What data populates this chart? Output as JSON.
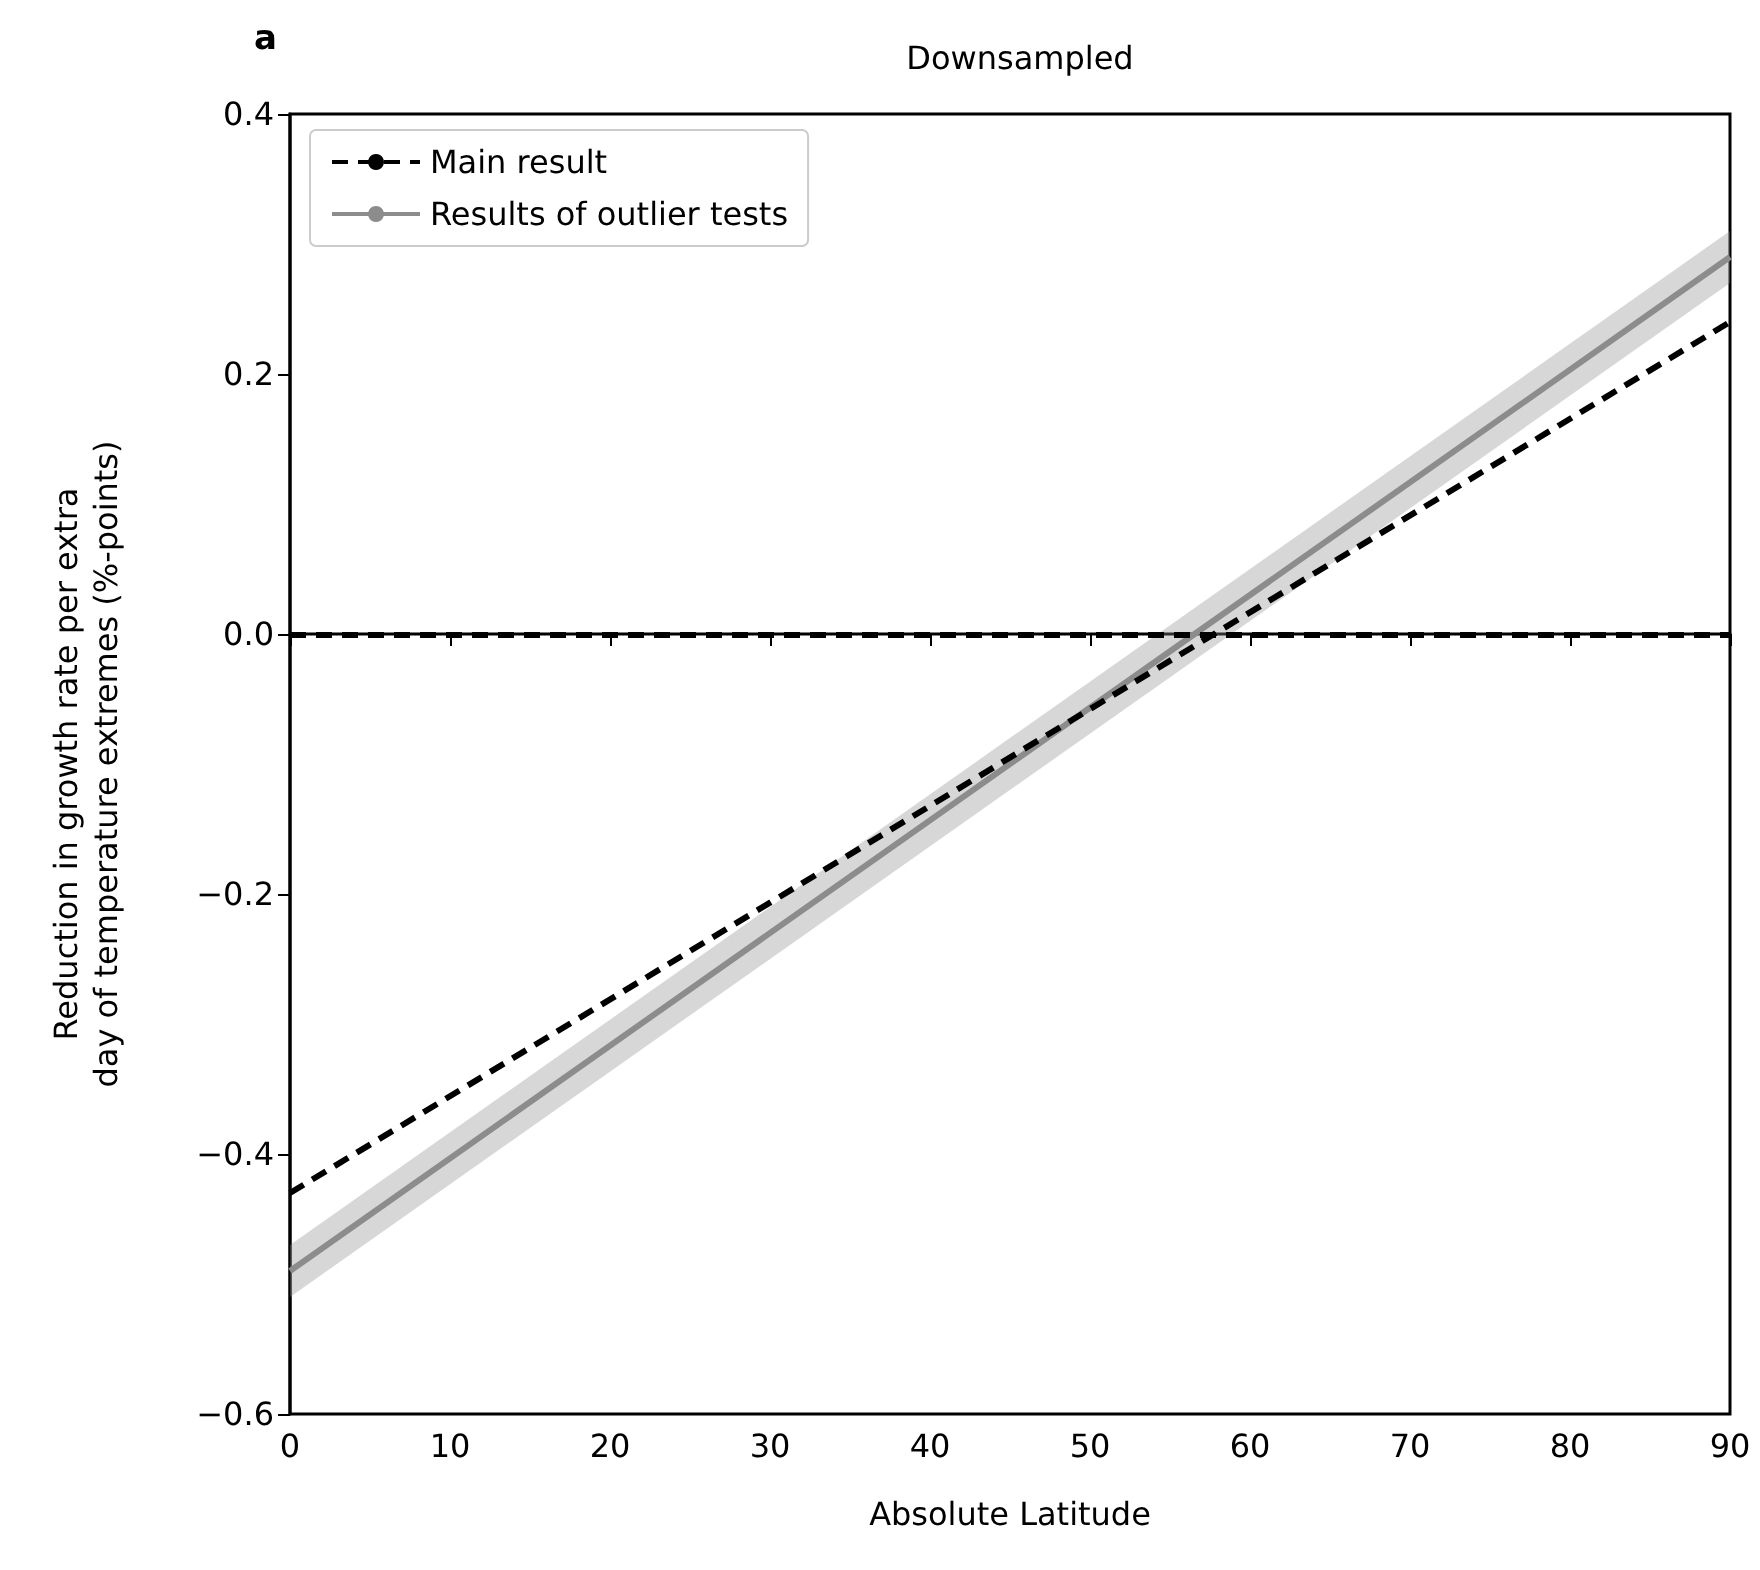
{
  "chart_data": {
    "type": "line",
    "title": "Downsampled",
    "xlabel": "Absolute Latitude",
    "ylabel": "Reduction in growth rate per extra\nday of temperature extremes (%-points)",
    "annotations": [
      "a"
    ],
    "x": [
      0,
      90
    ],
    "series": [
      {
        "name": "Main result",
        "color": "#000000",
        "values": [
          -0.43,
          0.24
        ],
        "line_style": "dashed"
      },
      {
        "name": "Results of outlier tests",
        "color": "#8c8c8c",
        "values": [
          -0.49,
          0.29
        ],
        "lower": [
          -0.51,
          0.27
        ],
        "upper": [
          -0.47,
          0.31
        ],
        "line_style": "solid"
      }
    ],
    "ref_lines": [
      {
        "axis": "y",
        "value": 0,
        "color": "#000000",
        "line_style": "dashed"
      }
    ],
    "xlim": [
      0,
      90
    ],
    "xticks": [
      0,
      10,
      20,
      30,
      40,
      50,
      60,
      70,
      80,
      90
    ],
    "ylim": [
      -0.6,
      0.4
    ],
    "yticks": [
      {
        "value": -0.6,
        "label": "−0.6"
      },
      {
        "value": -0.4,
        "label": "−0.4"
      },
      {
        "value": -0.2,
        "label": "−0.2"
      },
      {
        "value": 0,
        "label": "0.0"
      },
      {
        "value": 0.2,
        "label": "0.2"
      },
      {
        "value": 0.4,
        "label": "0.4"
      }
    ],
    "grid": false,
    "legend": "top left",
    "marker": "none"
  }
}
